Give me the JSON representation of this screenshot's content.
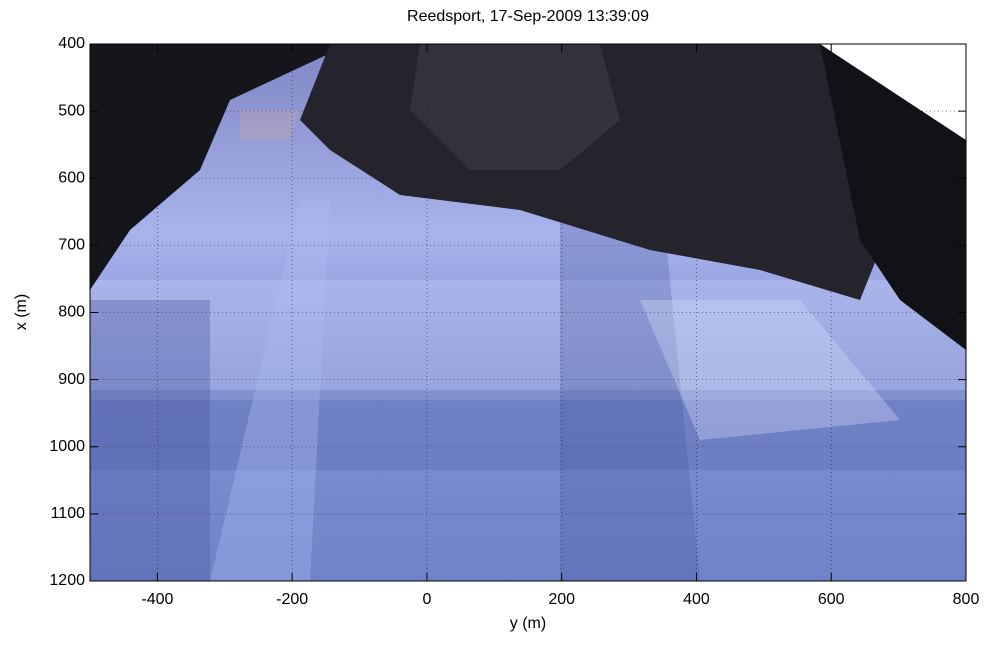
{
  "chart_data": {
    "type": "image",
    "title": "Reedsport, 17-Sep-2009 13:39:09",
    "xlabel": "y (m)",
    "ylabel": "x (m)",
    "xlim": [
      -500,
      800
    ],
    "xticks": [
      -400,
      -200,
      0,
      200,
      400,
      600,
      800
    ],
    "ylim": [
      400,
      1200
    ],
    "yticks": [
      400,
      500,
      600,
      700,
      800,
      900,
      1000,
      1100,
      1200
    ],
    "y_reversed": true,
    "grid": true
  }
}
